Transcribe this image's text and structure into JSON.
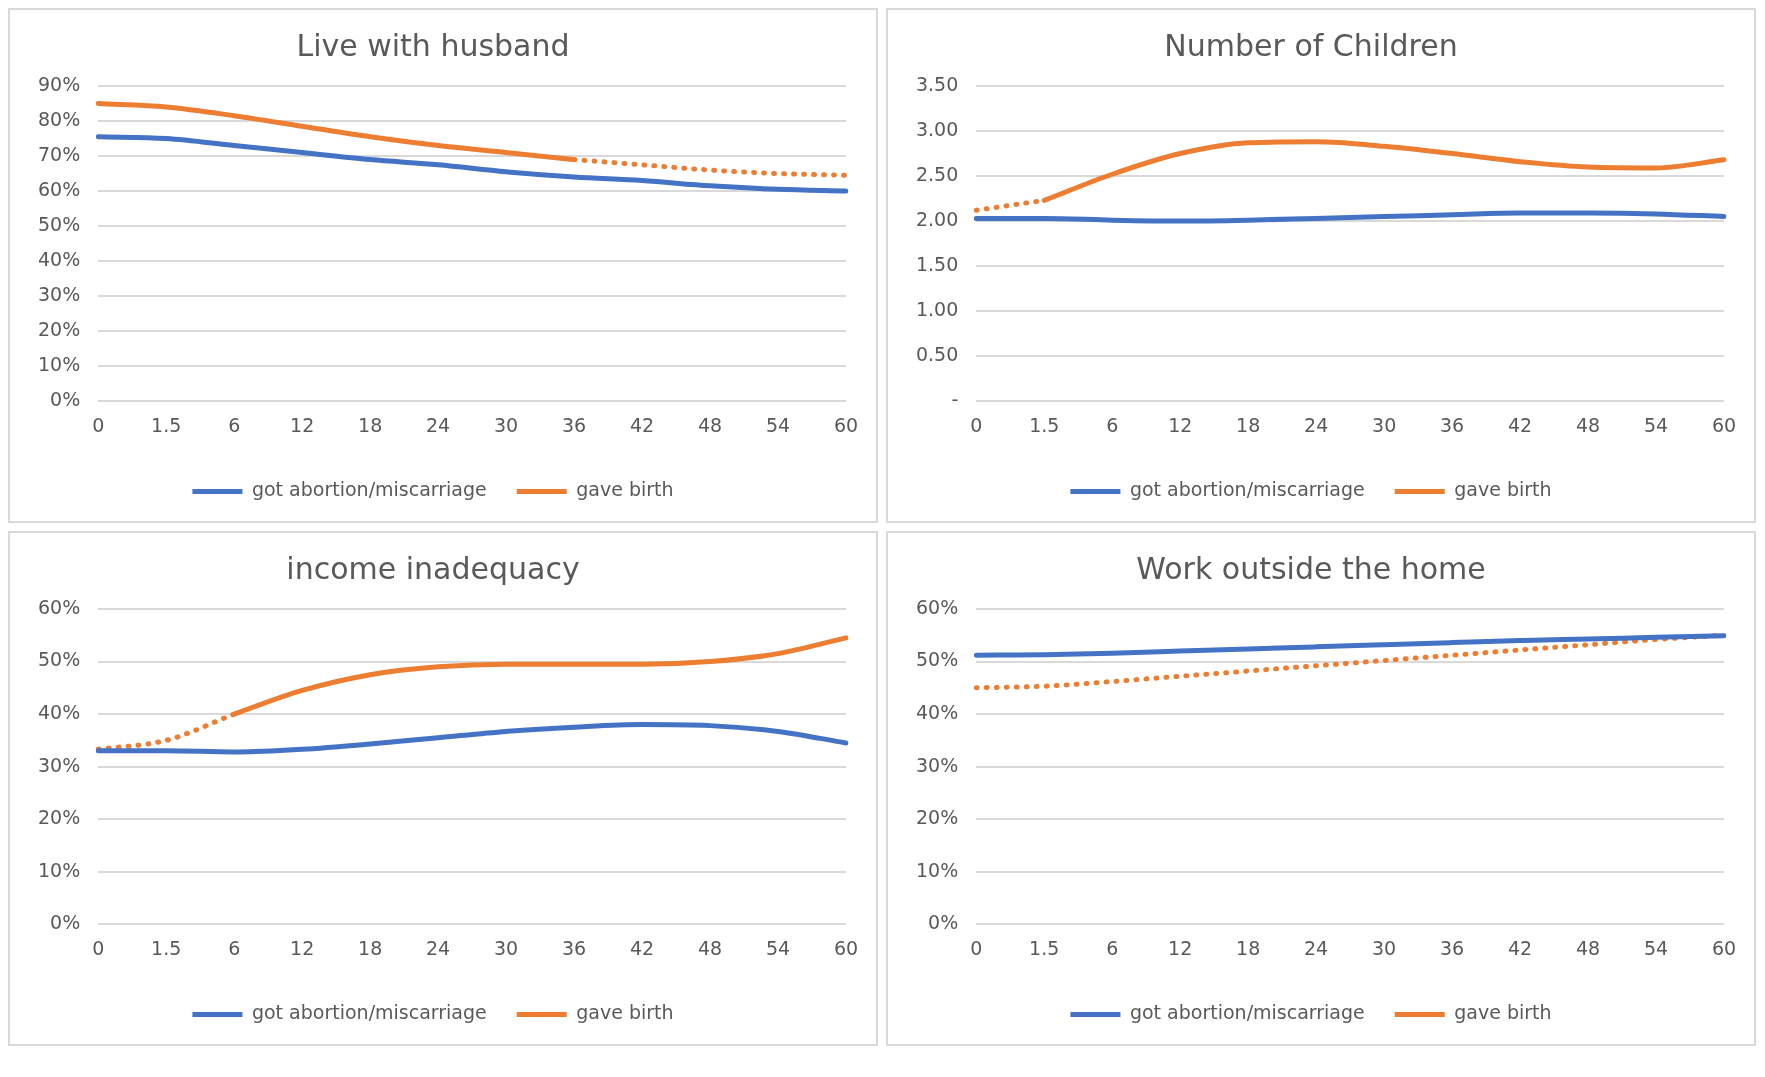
{
  "chart_data": [
    {
      "type": "line",
      "title": "Live with husband",
      "categories": [
        "0",
        "1.5",
        "6",
        "12",
        "18",
        "24",
        "30",
        "36",
        "42",
        "48",
        "54",
        "60"
      ],
      "ylim": [
        0,
        90
      ],
      "yticks": [
        {
          "value": 0,
          "label": "0%"
        },
        {
          "value": 10,
          "label": "10%"
        },
        {
          "value": 20,
          "label": "20%"
        },
        {
          "value": 30,
          "label": "30%"
        },
        {
          "value": 40,
          "label": "40%"
        },
        {
          "value": 50,
          "label": "50%"
        },
        {
          "value": 60,
          "label": "60%"
        },
        {
          "value": 70,
          "label": "70%"
        },
        {
          "value": 80,
          "label": "80%"
        },
        {
          "value": 90,
          "label": "90%"
        }
      ],
      "grid": "y",
      "legend": "bottom",
      "marker": "none",
      "series": [
        {
          "name": "got abortion/miscarriage",
          "color": "#4472c4",
          "line_style": "solid",
          "values": [
            75.5,
            75,
            73,
            71,
            69,
            67.5,
            65.5,
            64,
            63,
            61.5,
            60.5,
            60
          ]
        },
        {
          "name": "gave birth",
          "color": "#ed7d31",
          "line_style": "solid",
          "values": [
            85,
            84,
            81.5,
            78.5,
            75.5,
            73,
            71,
            69,
            null,
            null,
            null,
            null
          ]
        },
        {
          "color": "#ed7d31",
          "line_style": "dotted",
          "values": [
            null,
            null,
            null,
            null,
            null,
            null,
            null,
            69,
            67.5,
            66,
            65,
            64.5
          ]
        }
      ]
    },
    {
      "type": "line",
      "title": "Number of Children",
      "categories": [
        "0",
        "1.5",
        "6",
        "12",
        "18",
        "24",
        "30",
        "36",
        "42",
        "48",
        "54",
        "60"
      ],
      "ylim": [
        0,
        3.5
      ],
      "yticks": [
        {
          "value": 0,
          "label": "-"
        },
        {
          "value": 0.5,
          "label": "0.50"
        },
        {
          "value": 1,
          "label": "1.00"
        },
        {
          "value": 1.5,
          "label": "1.50"
        },
        {
          "value": 2,
          "label": "2.00"
        },
        {
          "value": 2.5,
          "label": "2.50"
        },
        {
          "value": 3,
          "label": "3.00"
        },
        {
          "value": 3.5,
          "label": "3.50"
        }
      ],
      "grid": "y",
      "legend": "bottom",
      "marker": "none",
      "series": [
        {
          "name": "got abortion/miscarriage",
          "color": "#4472c4",
          "line_style": "solid",
          "values": [
            2.03,
            2.03,
            2.01,
            2.0,
            2.01,
            2.03,
            2.05,
            2.07,
            2.09,
            2.09,
            2.08,
            2.05
          ]
        },
        {
          "name": "gave birth",
          "color": "#ed7d31",
          "line_style": "solid",
          "values": [
            null,
            2.23,
            2.52,
            2.75,
            2.87,
            2.88,
            2.83,
            2.75,
            2.66,
            2.6,
            2.59,
            2.68
          ]
        },
        {
          "color": "#ed7d31",
          "line_style": "dotted",
          "values": [
            2.12,
            2.23,
            null,
            null,
            null,
            null,
            null,
            null,
            null,
            null,
            null,
            null
          ]
        }
      ]
    },
    {
      "type": "line",
      "title": "income inadequacy",
      "categories": [
        "0",
        "1.5",
        "6",
        "12",
        "18",
        "24",
        "30",
        "36",
        "42",
        "48",
        "54",
        "60"
      ],
      "ylim": [
        0,
        60
      ],
      "yticks": [
        {
          "value": 0,
          "label": "0%"
        },
        {
          "value": 10,
          "label": "10%"
        },
        {
          "value": 20,
          "label": "20%"
        },
        {
          "value": 30,
          "label": "30%"
        },
        {
          "value": 40,
          "label": "40%"
        },
        {
          "value": 50,
          "label": "50%"
        },
        {
          "value": 60,
          "label": "60%"
        }
      ],
      "grid": "y",
      "legend": "bottom",
      "marker": "none",
      "series": [
        {
          "name": "got abortion/miscarriage",
          "color": "#4472c4",
          "line_style": "solid",
          "values": [
            33,
            33,
            32.8,
            33.3,
            34.3,
            35.5,
            36.7,
            37.5,
            38,
            37.8,
            36.7,
            34.5
          ]
        },
        {
          "name": "gave birth",
          "color": "#ed7d31",
          "line_style": "solid",
          "values": [
            null,
            null,
            40,
            44.5,
            47.5,
            49,
            49.5,
            49.5,
            49.5,
            50,
            51.5,
            54.5
          ]
        },
        {
          "color": "#ed7d31",
          "line_style": "dotted",
          "values": [
            33.3,
            35,
            40,
            null,
            null,
            null,
            null,
            null,
            null,
            null,
            null,
            null
          ]
        }
      ]
    },
    {
      "type": "line",
      "title": "Work outside the home",
      "categories": [
        "0",
        "1.5",
        "6",
        "12",
        "18",
        "24",
        "30",
        "36",
        "42",
        "48",
        "54",
        "60"
      ],
      "ylim": [
        0,
        60
      ],
      "yticks": [
        {
          "value": 0,
          "label": "0%"
        },
        {
          "value": 10,
          "label": "10%"
        },
        {
          "value": 20,
          "label": "20%"
        },
        {
          "value": 30,
          "label": "30%"
        },
        {
          "value": 40,
          "label": "40%"
        },
        {
          "value": 50,
          "label": "50%"
        },
        {
          "value": 60,
          "label": "60%"
        }
      ],
      "grid": "y",
      "legend": "bottom",
      "marker": "none",
      "series": [
        {
          "name": "got abortion/miscarriage",
          "color": "#4472c4",
          "line_style": "solid",
          "values": [
            51.2,
            51.3,
            51.6,
            52,
            52.4,
            52.8,
            53.2,
            53.6,
            54,
            54.3,
            54.6,
            54.9
          ]
        },
        {
          "name": "gave birth",
          "color": "#ed7d31",
          "line_style": "dotted",
          "values": [
            45,
            45.3,
            46.2,
            47.2,
            48.2,
            49.2,
            50.2,
            51.2,
            52.2,
            53.2,
            54.2,
            55
          ]
        }
      ]
    }
  ]
}
